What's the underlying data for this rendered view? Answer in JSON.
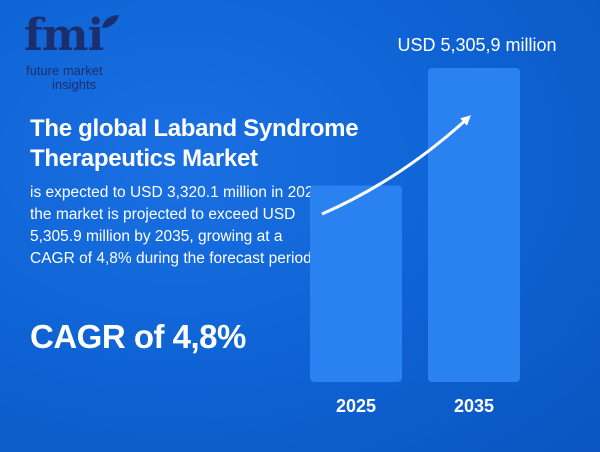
{
  "brand": {
    "logo_text": "fmi",
    "line1": "future market",
    "line2": "insights",
    "color": "#1b2f6e"
  },
  "headline": {
    "title": "The global Laband Syndrome Therapeutics Market",
    "description": "is expected to USD 3,320.1 million in 2025, the market is projected to exceed USD 5,305.9 million by 2035, growing at a CAGR of 4,8% during the forecast period.",
    "cagr": "CAGR of 4,8%"
  },
  "colors": {
    "background": "#0d62d4",
    "bar": "#2a82f0",
    "text": "#ffffff"
  },
  "chart_data": {
    "type": "bar",
    "categories": [
      "2025",
      "2035"
    ],
    "values": [
      3320.1,
      5305.9
    ],
    "unit": "USD million",
    "value_label": "USD 5,305,9 million",
    "title": "",
    "xlabel": "",
    "ylabel": "",
    "grid": false,
    "legend": "none"
  }
}
